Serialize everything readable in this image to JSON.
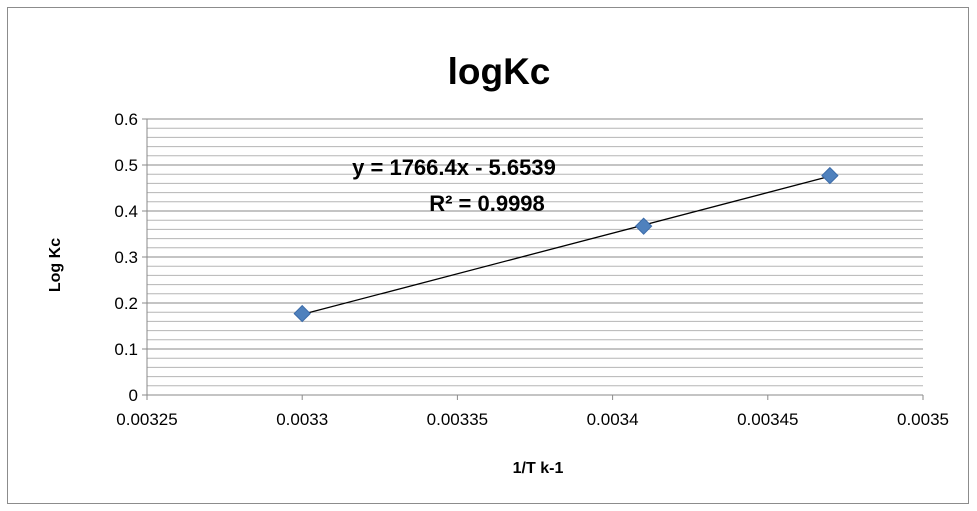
{
  "chart_data": {
    "type": "scatter",
    "title": "logKc",
    "xlabel": "1/T k-1",
    "ylabel": "Log Kc",
    "xlim": [
      0.00325,
      0.0035
    ],
    "ylim": [
      0,
      0.6
    ],
    "x_ticks": [
      "0.00325",
      "0.0033",
      "0.00335",
      "0.0034",
      "0.00345",
      "0.0035"
    ],
    "y_ticks": [
      "0",
      "0.1",
      "0.2",
      "0.3",
      "0.4",
      "0.5",
      "0.6"
    ],
    "grid": "horizontal",
    "legend": "none",
    "series": [
      {
        "x": [
          0.0033,
          0.00341,
          0.00347
        ],
        "y": [
          0.177,
          0.367,
          0.477
        ],
        "marker": "diamond",
        "color": "#4f81bd"
      }
    ],
    "trendline": {
      "type": "linear",
      "slope": 1766.4,
      "intercept": -5.6539,
      "color": "#000000",
      "equation_label": "y = 1766.4x - 5.6539",
      "r2_label": "R² = 0.9998"
    }
  }
}
